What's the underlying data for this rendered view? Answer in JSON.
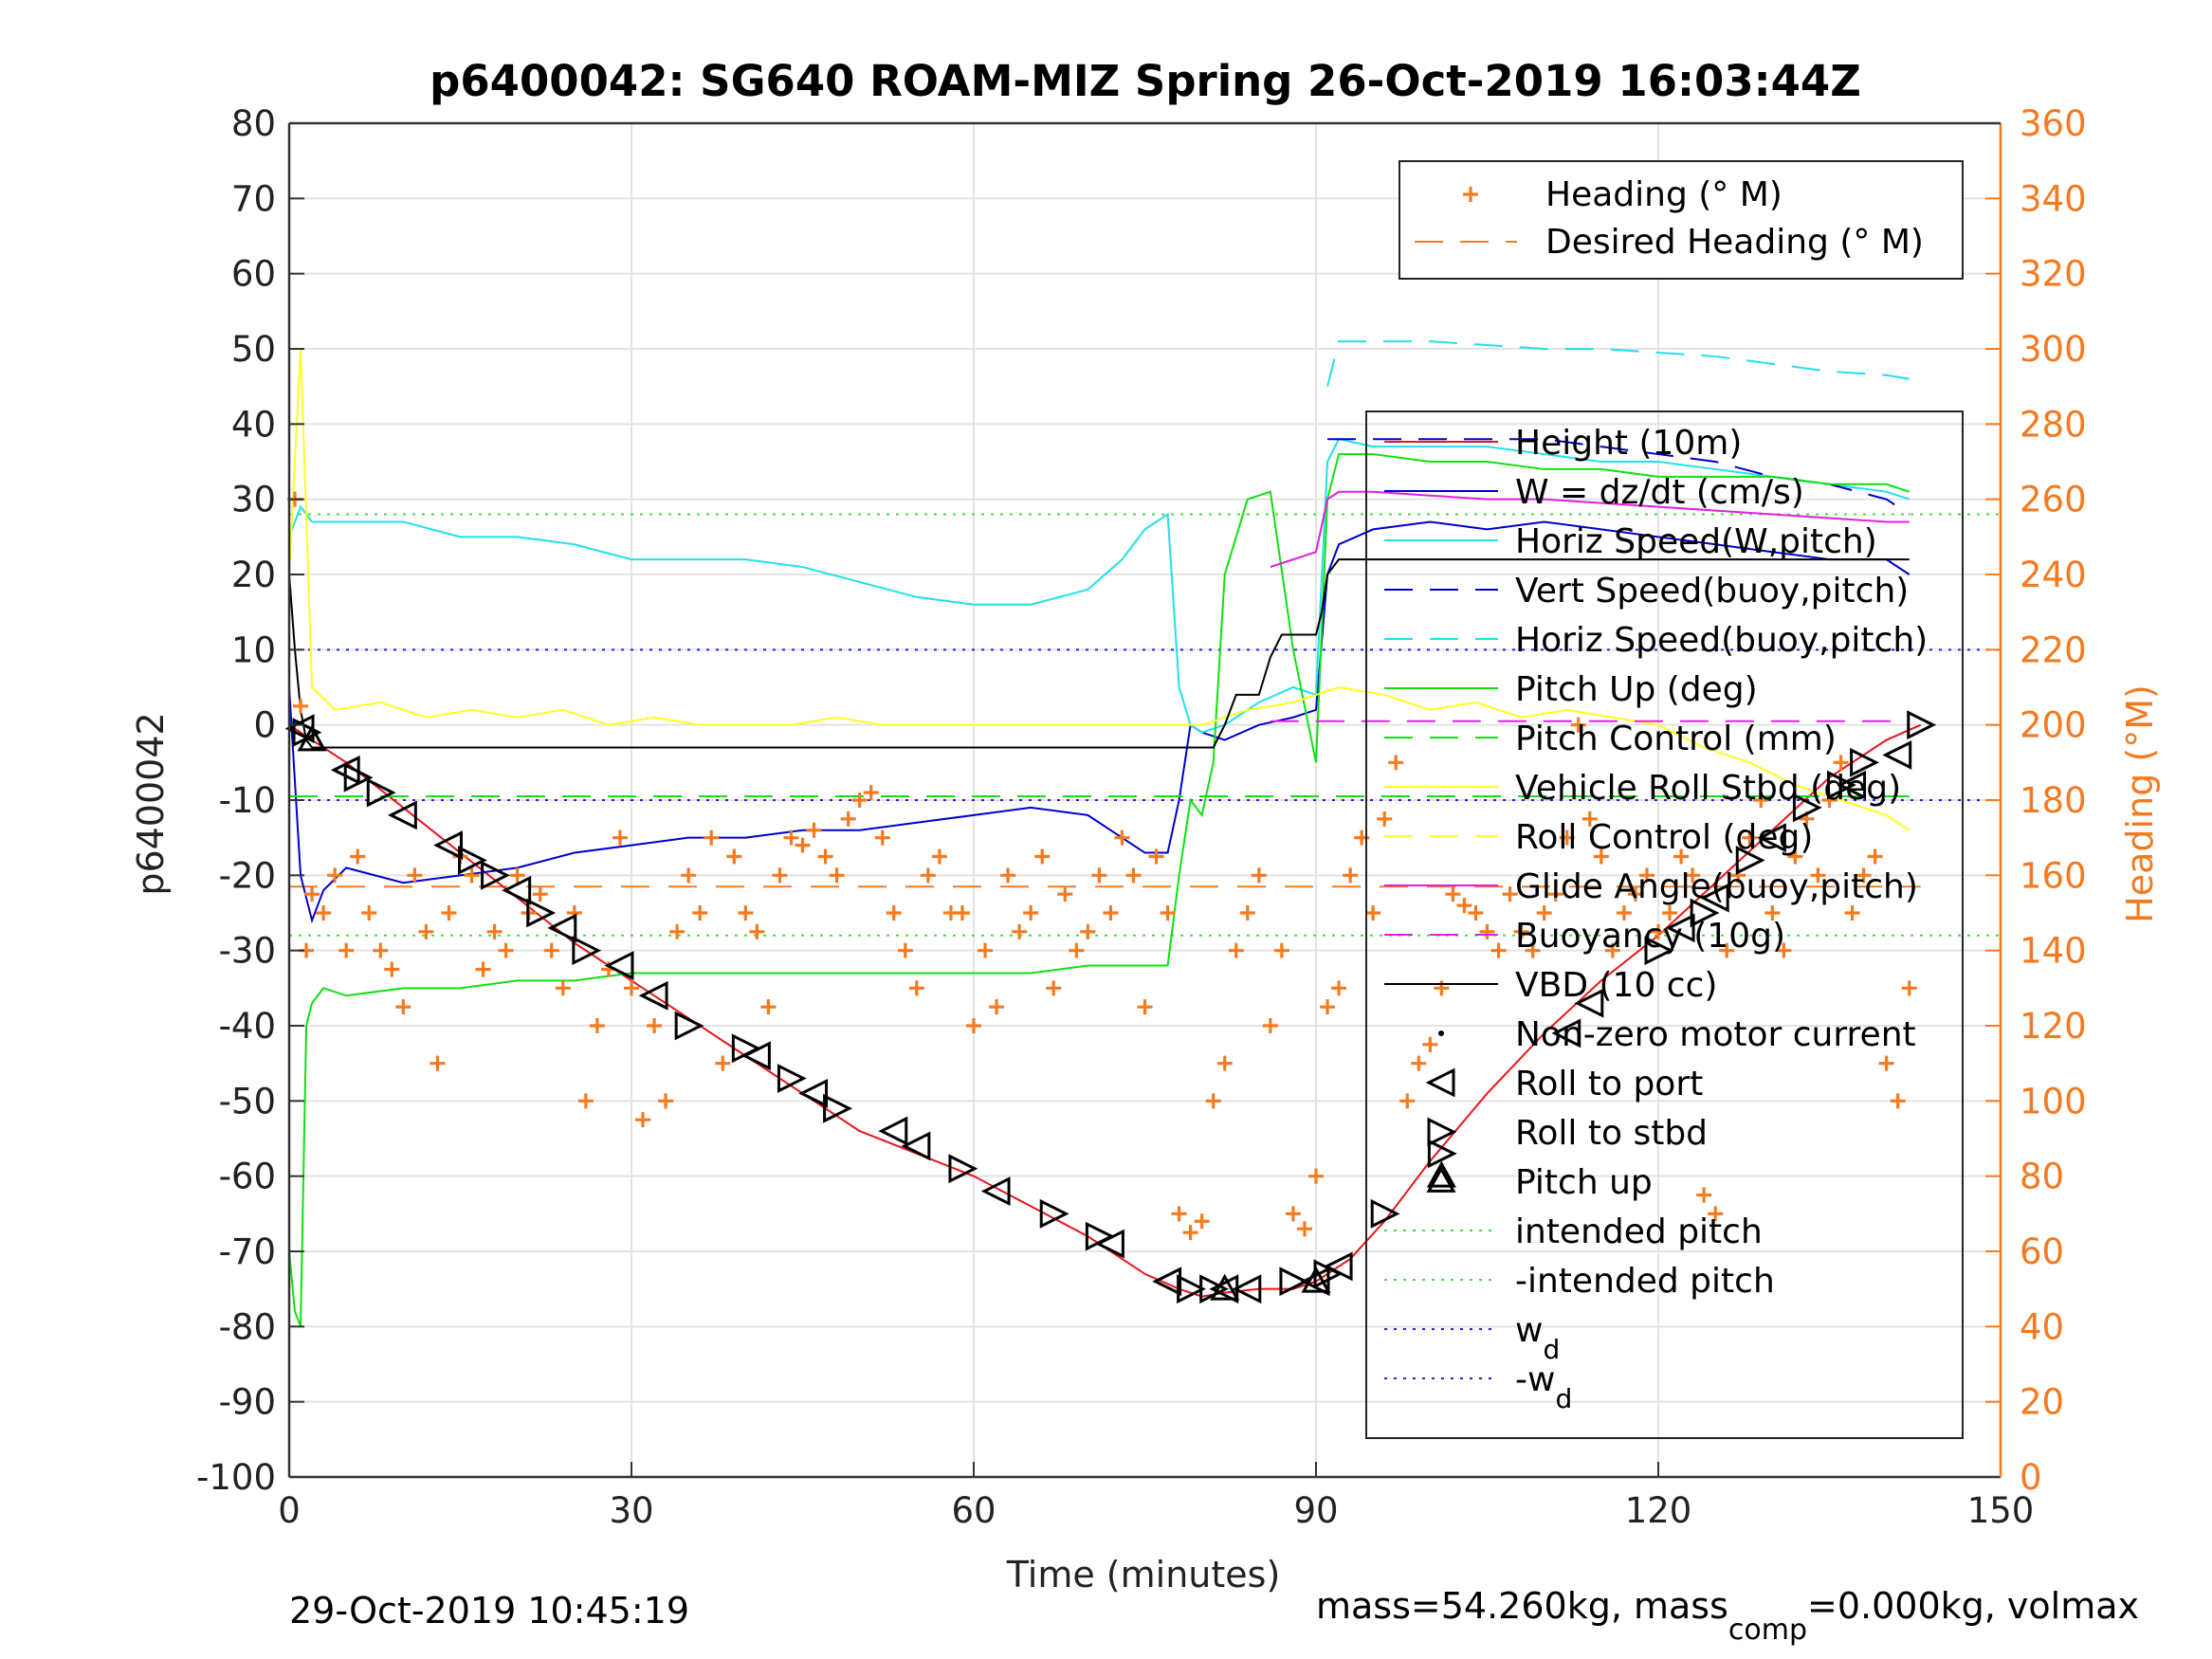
{
  "chart_data": {
    "type": "line",
    "title": "p6400042: SG640 ROAM-MIZ Spring 26-Oct-2019 16:03:44Z",
    "xlabel": "Time (minutes)",
    "ylabel_left": "p6400042",
    "ylabel_right": "Heading (°M)",
    "xlim": [
      0,
      150
    ],
    "ylim_left": [
      -100,
      80
    ],
    "ylim_right": [
      0,
      360
    ],
    "x_ticks": [
      "0",
      "30",
      "60",
      "90",
      "120",
      "150"
    ],
    "y_ticks_left": [
      "80",
      "70",
      "60",
      "50",
      "40",
      "30",
      "20",
      "10",
      "0",
      "-10",
      "-20",
      "-30",
      "-40",
      "-50",
      "-60",
      "-70",
      "-80",
      "-90",
      "-100"
    ],
    "y_ticks_right": [
      "360",
      "340",
      "320",
      "300",
      "280",
      "260",
      "240",
      "220",
      "200",
      "180",
      "160",
      "140",
      "120",
      "100",
      "80",
      "60",
      "40",
      "20",
      "0"
    ],
    "grid": true,
    "footer_left": "29-Oct-2019 10:45:19",
    "footer_right_prefix": "mass=54.260kg, mass",
    "footer_right_sub": "comp",
    "footer_right_suffix": "=0.000kg, volmax",
    "colors": {
      "heading": "#f47a20",
      "height": "#e8141d",
      "w": "#0000cc",
      "horiz_speed": "#20e0e8",
      "pitch": "#10e010",
      "roll": "#ffff20",
      "glide": "#e020e0",
      "vbd": "#000000",
      "guides_pitch": "#40e040",
      "guides_w": "#2020e0"
    },
    "legend_right_axis": [
      {
        "label": "Heading (° M)",
        "style": "plus"
      },
      {
        "label": "Desired Heading (° M)",
        "style": "dashed"
      }
    ],
    "legend_left_axis": [
      {
        "label": "Height (10m)"
      },
      {
        "label": "W = dz/dt (cm/s)"
      },
      {
        "label": "Horiz Speed(W,pitch)"
      },
      {
        "label": "Vert Speed(buoy,pitch)"
      },
      {
        "label": "Horiz Speed(buoy,pitch)"
      },
      {
        "label": "Pitch Up (deg)"
      },
      {
        "label": "Pitch Control (mm)"
      },
      {
        "label": "Vehicle Roll Stbd (deg)"
      },
      {
        "label": "Roll Control (deg)"
      },
      {
        "label": "Glide Angle(buoy,pitch)"
      },
      {
        "label": "Buoyancy (10g)"
      },
      {
        "label": "VBD (10 cc)"
      },
      {
        "label": "Non-zero motor current"
      },
      {
        "label": "Roll to port"
      },
      {
        "label": "Roll to stbd"
      },
      {
        "label": "Pitch up"
      },
      {
        "label": "intended pitch"
      },
      {
        "label": "-intended pitch"
      },
      {
        "label": "w",
        "sub": "d"
      },
      {
        "label": "-w",
        "sub": "d"
      }
    ],
    "series": [
      {
        "name": "Height (10m)",
        "axis": "left",
        "x": [
          0,
          2,
          5,
          10,
          15,
          20,
          25,
          30,
          35,
          40,
          45,
          50,
          55,
          60,
          65,
          70,
          75,
          78,
          80,
          82,
          85,
          88,
          90,
          93,
          96,
          100,
          105,
          110,
          115,
          120,
          125,
          130,
          135,
          140,
          143
        ],
        "y": [
          0,
          -2,
          -5,
          -11,
          -17,
          -23,
          -29,
          -34,
          -39,
          -44,
          -49,
          -54,
          -57,
          -60,
          -64,
          -68,
          -73,
          -75,
          -76,
          -75.5,
          -75,
          -75,
          -74,
          -71,
          -66,
          -58,
          -49,
          -41,
          -34,
          -28,
          -21,
          -14,
          -7,
          -2,
          0
        ]
      },
      {
        "name": "W = dz/dt (cm/s)",
        "axis": "left",
        "x": [
          0,
          1,
          2,
          3,
          5,
          10,
          15,
          20,
          25,
          30,
          35,
          40,
          45,
          50,
          55,
          60,
          65,
          70,
          73,
          75,
          77,
          78,
          79,
          80,
          82,
          85,
          88,
          90,
          91,
          92,
          95,
          100,
          105,
          110,
          115,
          120,
          125,
          130,
          135,
          140,
          142
        ],
        "y": [
          5,
          -20,
          -26,
          -22,
          -19,
          -21,
          -20,
          -19,
          -17,
          -16,
          -15,
          -15,
          -14,
          -14,
          -13,
          -12,
          -11,
          -12,
          -15,
          -17,
          -17,
          -10,
          0,
          -1,
          -2,
          0,
          1,
          2,
          20,
          24,
          26,
          27,
          26,
          27,
          26,
          25,
          24,
          23,
          22,
          22,
          20
        ]
      },
      {
        "name": "Horiz Speed(W,pitch)",
        "axis": "left",
        "x": [
          0,
          1,
          2,
          5,
          10,
          15,
          20,
          25,
          30,
          35,
          40,
          45,
          50,
          55,
          60,
          65,
          70,
          73,
          75,
          77,
          78,
          79,
          80,
          82,
          85,
          88,
          90,
          91,
          92,
          95,
          100,
          105,
          110,
          115,
          120,
          125,
          130,
          135,
          140,
          142
        ],
        "y": [
          25,
          29,
          27,
          27,
          27,
          25,
          25,
          24,
          22,
          22,
          22,
          21,
          19,
          17,
          16,
          16,
          18,
          22,
          26,
          28,
          5,
          0,
          -1,
          0,
          3,
          5,
          4,
          35,
          38,
          37,
          37,
          37,
          36,
          35,
          35,
          34,
          33,
          32,
          31,
          30
        ]
      },
      {
        "name": "Vert Speed(buoy,pitch)",
        "axis": "left",
        "dash": true,
        "x": [
          91,
          95,
          100,
          105,
          110,
          115,
          120,
          125,
          130,
          135,
          140,
          142
        ],
        "y": [
          38,
          38,
          38,
          38,
          38,
          37,
          36,
          35,
          33,
          32,
          30,
          28
        ]
      },
      {
        "name": "Horiz Speed(buoy,pitch)",
        "axis": "left",
        "dash": true,
        "x": [
          91,
          92,
          95,
          100,
          105,
          110,
          115,
          120,
          125,
          130,
          135,
          140,
          142
        ],
        "y": [
          45,
          51,
          51,
          51,
          50.5,
          50,
          50,
          49.5,
          49,
          48,
          47,
          46.5,
          46
        ]
      },
      {
        "name": "Pitch Up (deg)",
        "axis": "left",
        "x": [
          0,
          0.5,
          1,
          1.5,
          2,
          3,
          5,
          10,
          15,
          20,
          25,
          30,
          35,
          40,
          45,
          50,
          55,
          60,
          65,
          70,
          75,
          77,
          78,
          79,
          80,
          81,
          82,
          84,
          86,
          88,
          90,
          91,
          92,
          95,
          100,
          105,
          110,
          115,
          120,
          125,
          130,
          135,
          140,
          142
        ],
        "y": [
          -70,
          -78,
          -80,
          -40,
          -37,
          -35,
          -36,
          -35,
          -35,
          -34,
          -34,
          -33,
          -33,
          -33,
          -33,
          -33,
          -33,
          -33,
          -33,
          -32,
          -32,
          -32,
          -20,
          -10,
          -12,
          -5,
          20,
          30,
          31,
          10,
          -5,
          30,
          36,
          36,
          35,
          35,
          34,
          34,
          33,
          33,
          33,
          32,
          32,
          31
        ]
      },
      {
        "name": "Pitch Control (mm)",
        "axis": "left",
        "dash": true,
        "x": [
          0,
          80,
          81,
          142
        ],
        "y": [
          -9.5,
          -9.5,
          -9.5,
          -9.5
        ]
      },
      {
        "name": "Vehicle Roll Stbd (deg)",
        "axis": "left",
        "x": [
          0,
          1,
          2,
          4,
          8,
          12,
          16,
          20,
          24,
          28,
          32,
          36,
          40,
          44,
          48,
          52,
          56,
          60,
          64,
          68,
          72,
          76,
          80,
          84,
          88,
          92,
          96,
          100,
          104,
          108,
          112,
          116,
          120,
          124,
          128,
          132,
          136,
          140,
          142
        ],
        "y": [
          20,
          50,
          5,
          2,
          3,
          1,
          2,
          1,
          2,
          0,
          1,
          0,
          0,
          0,
          1,
          0,
          0,
          0,
          0,
          0,
          0,
          0,
          0,
          2,
          3,
          5,
          4,
          2,
          3,
          1,
          2,
          1,
          0,
          -3,
          -5,
          -8,
          -10,
          -12,
          -14
        ]
      },
      {
        "name": "Glide Angle(buoy,pitch)",
        "axis": "left",
        "x": [
          86,
          88,
          90,
          91,
          92,
          95,
          100,
          105,
          110,
          115,
          120,
          125,
          130,
          135,
          140,
          142
        ],
        "y": [
          21,
          22,
          23,
          30,
          31,
          31,
          30.5,
          30,
          30,
          29.5,
          29,
          28.5,
          28,
          27.5,
          27,
          27
        ]
      },
      {
        "name": "Buoyancy (10g)",
        "axis": "left",
        "dash": true,
        "x": [
          86,
          142
        ],
        "y": [
          0.5,
          0.5
        ]
      },
      {
        "name": "VBD (10 cc)",
        "axis": "left",
        "x": [
          0,
          0.5,
          1,
          1.5,
          2,
          10,
          30,
          60,
          80,
          81,
          82,
          83,
          85,
          86,
          87,
          88,
          89,
          90,
          90.5,
          91,
          92,
          95,
          100,
          120,
          142
        ],
        "y": [
          20,
          10,
          2,
          -2,
          -3,
          -3,
          -3,
          -3,
          -3,
          -3,
          0,
          4,
          4,
          9,
          12,
          12,
          12,
          12,
          15,
          20,
          22,
          22,
          22,
          22,
          22
        ]
      }
    ],
    "guides": [
      {
        "name": "intended pitch",
        "y": 28
      },
      {
        "name": "-intended pitch",
        "y": -28
      },
      {
        "name": "w_d",
        "y": 10
      },
      {
        "name": "-w_d",
        "y": -10
      }
    ],
    "desired_heading": {
      "x": [
        0,
        143
      ],
      "y": [
        157,
        157
      ]
    },
    "heading_points": {
      "x": [
        0.5,
        1,
        1.5,
        2,
        3,
        4,
        5,
        6,
        7,
        8,
        9,
        10,
        11,
        12,
        13,
        14,
        15,
        16,
        17,
        18,
        19,
        20,
        21,
        22,
        23,
        24,
        25,
        26,
        27,
        28,
        29,
        30,
        31,
        32,
        33,
        34,
        35,
        36,
        37,
        38,
        39,
        40,
        41,
        42,
        43,
        44,
        45,
        46,
        47,
        48,
        49,
        50,
        51,
        52,
        53,
        54,
        55,
        56,
        57,
        58,
        59,
        60,
        61,
        62,
        63,
        64,
        65,
        66,
        67,
        68,
        69,
        70,
        71,
        72,
        73,
        74,
        75,
        76,
        77,
        78,
        79,
        80,
        81,
        82,
        83,
        84,
        85,
        86,
        87,
        88,
        89,
        90,
        91,
        92,
        93,
        94,
        95,
        96,
        97,
        98,
        99,
        100,
        101,
        102,
        103,
        104,
        105,
        106,
        107,
        108,
        109,
        110,
        111,
        112,
        113,
        114,
        115,
        116,
        117,
        118,
        119,
        120,
        121,
        122,
        123,
        124,
        125,
        126,
        127,
        128,
        129,
        130,
        131,
        132,
        133,
        134,
        135,
        136,
        137,
        138,
        139,
        140,
        141,
        142
      ],
      "y": [
        260,
        205,
        140,
        155,
        150,
        160,
        140,
        165,
        150,
        140,
        135,
        125,
        160,
        145,
        110,
        150,
        165,
        160,
        135,
        145,
        140,
        160,
        150,
        155,
        140,
        130,
        150,
        100,
        120,
        135,
        170,
        130,
        95,
        120,
        100,
        145,
        160,
        150,
        170,
        110,
        165,
        150,
        145,
        125,
        160,
        170,
        168,
        172,
        165,
        160,
        175,
        180,
        182,
        170,
        150,
        140,
        130,
        160,
        165,
        150,
        150,
        120,
        140,
        125,
        160,
        145,
        150,
        165,
        130,
        155,
        140,
        145,
        160,
        150,
        170,
        160,
        125,
        165,
        150,
        70,
        65,
        68,
        100,
        110,
        140,
        150,
        160,
        120,
        140,
        70,
        66,
        80,
        125,
        130,
        160,
        170,
        150,
        175,
        190,
        100,
        110,
        115,
        130,
        155,
        152,
        150,
        145,
        140,
        155,
        145,
        140,
        150,
        155,
        170,
        200,
        175,
        165,
        140,
        150,
        155,
        160,
        145,
        150,
        165,
        160,
        75,
        70,
        140,
        160,
        170,
        180,
        150,
        140,
        165,
        175,
        160,
        180,
        190,
        150,
        160,
        165,
        110,
        100,
        130
      ]
    },
    "markers": {
      "port": {
        "x": [
          1,
          5,
          10,
          14,
          20,
          24,
          29,
          32,
          41,
          46,
          53,
          55,
          62,
          72,
          77,
          82,
          84,
          90,
          92,
          112,
          114,
          122,
          125,
          130,
          137,
          141
        ],
        "y": [
          -0.5,
          -6,
          -12,
          -16,
          -22,
          -27,
          -32,
          -36,
          -44,
          -49,
          -54,
          -56,
          -62,
          -69,
          -74,
          -75,
          -75,
          -74,
          -72,
          -41,
          -37,
          -27,
          -23,
          -15,
          -8,
          -4
        ]
      },
      "stbd": {
        "x": [
          1.5,
          6,
          8,
          16,
          18,
          22,
          26,
          35,
          40,
          44,
          48,
          59,
          67,
          71,
          79,
          81,
          88,
          91,
          96,
          101,
          120,
          124,
          128,
          133,
          136,
          138,
          143
        ],
        "y": [
          -1,
          -7,
          -9,
          -18,
          -20,
          -25,
          -30,
          -40,
          -43,
          -47,
          -51,
          -59,
          -65,
          -68,
          -75,
          -75,
          -74,
          -73,
          -65,
          -57,
          -30,
          -25,
          -18,
          -11,
          -8,
          -5,
          0
        ]
      },
      "pitch_up": {
        "x": [
          2,
          82,
          90,
          101
        ],
        "y": [
          -2,
          -75,
          -74,
          -60
        ]
      }
    }
  }
}
